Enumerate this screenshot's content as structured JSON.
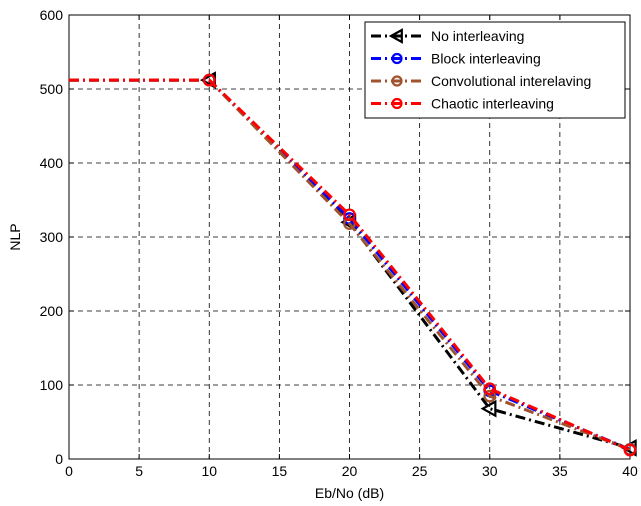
{
  "chart_data": {
    "type": "line",
    "title": "",
    "xlabel": "Eb/No (dB)",
    "ylabel": "NLP",
    "xlim": [
      0,
      40
    ],
    "ylim": [
      0,
      600
    ],
    "xticks": [
      0,
      5,
      10,
      15,
      20,
      25,
      30,
      35,
      40
    ],
    "yticks": [
      0,
      100,
      200,
      300,
      400,
      500,
      600
    ],
    "grid": true,
    "legend_position": "top-right",
    "series": [
      {
        "name": "No interleaving",
        "color": "#000000",
        "marker": "triangle-left",
        "x": [
          0,
          10,
          20,
          30,
          40
        ],
        "y": [
          512,
          512,
          320,
          68,
          15
        ]
      },
      {
        "name": "Block interleaving",
        "color": "#0000ff",
        "marker": "circle",
        "x": [
          0,
          10,
          20,
          30,
          40
        ],
        "y": [
          512,
          512,
          325,
          92,
          13
        ]
      },
      {
        "name": "Convolutional interelaving",
        "color": "#a0522d",
        "marker": "circle",
        "x": [
          0,
          10,
          20,
          30,
          40
        ],
        "y": [
          512,
          512,
          318,
          85,
          13
        ]
      },
      {
        "name": "Chaotic interleaving",
        "color": "#ff0000",
        "marker": "circle",
        "x": [
          0,
          10,
          20,
          30,
          40
        ],
        "y": [
          512,
          512,
          330,
          95,
          12
        ]
      }
    ]
  }
}
